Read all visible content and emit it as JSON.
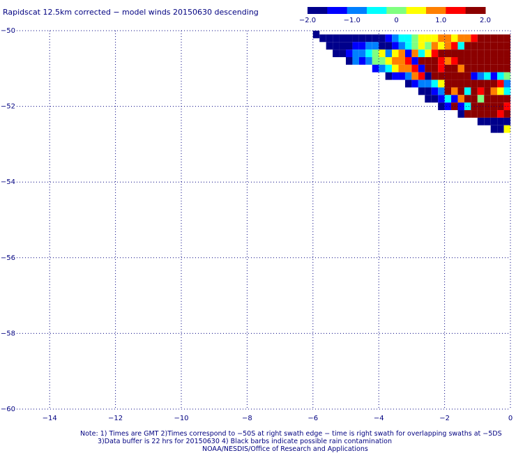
{
  "title": "Rapidscat 12.5km corrected − model winds 20150630 descending",
  "colorbar": {
    "min": -2.0,
    "max": 2.0,
    "tick_values": [
      -2.0,
      -1.0,
      0,
      1.0,
      2.0
    ],
    "tick_labels": [
      "−2.0",
      "−1.0",
      "0",
      "1.0",
      "2.0"
    ],
    "colors": [
      "#00008b",
      "#0000ff",
      "#0080ff",
      "#00ffff",
      "#80ff80",
      "#ffff00",
      "#ff8000",
      "#ff0000",
      "#8b0000"
    ]
  },
  "notes": {
    "line1": "Note: 1) Times are GMT 2)Times correspond to −50S at right swath edge − time is right swath for overlapping swaths at −5DS",
    "line2": "3)Data buffer is 22 hrs for 20150630 4) Black barbs indicate possible rain contamination",
    "line3": "NOAA/NESDIS/Office of Research and Applications"
  },
  "chart_data": {
    "type": "heatmap",
    "title": "Rapidscat 12.5km corrected − model winds 20150630 descending",
    "xlabel": "",
    "ylabel": "",
    "xlim": [
      -15,
      0
    ],
    "ylim": [
      -60,
      -50
    ],
    "x_ticks": [
      -14,
      -12,
      -10,
      -8,
      -6,
      -4,
      -2,
      0
    ],
    "x_tick_labels": [
      "−14",
      "−12",
      "−10",
      "−8",
      "−6",
      "−4",
      "−2",
      "0"
    ],
    "y_ticks": [
      -50,
      -52,
      -54,
      -56,
      -58,
      -60
    ],
    "y_tick_labels": [
      "−50",
      "−52",
      "−54",
      "−56",
      "−58",
      "−60"
    ],
    "grid": true,
    "cell_size_deg": 0.2,
    "value_range": [
      -2.0,
      2.0
    ],
    "rows": [
      {
        "lat": -50.0,
        "lon_start": -6.0,
        "values": [
          -2.0
        ]
      },
      {
        "lat": -50.1,
        "lon_start": -5.8,
        "values": [
          -2.0,
          -2.0,
          -1.6,
          -2.0,
          -1.6,
          -2.0,
          -1.6,
          -2.0,
          -1.8,
          -1.6,
          -1.2,
          -0.9,
          -0.5,
          -0.3,
          0.1,
          0.3,
          0.5,
          0.6,
          0.8,
          1.0,
          0.5,
          0.8,
          1.0,
          1.5,
          1.8,
          2.0,
          2.0,
          2.0,
          2.0,
          2.0
        ]
      },
      {
        "lat": -50.3,
        "lon_start": -5.6,
        "values": [
          -2.0,
          -1.8,
          -1.6,
          -1.8,
          -1.4,
          -1.2,
          -0.9,
          -0.7,
          -1.8,
          -1.6,
          -1.3,
          -0.9,
          -0.4,
          0.2,
          0.4,
          -0.2,
          0.7,
          0.3,
          1.0,
          1.3,
          -0.5,
          1.7,
          2.0,
          2.0,
          2.0,
          2.0,
          2.0,
          2.0
        ]
      },
      {
        "lat": -50.5,
        "lon_start": -5.4,
        "values": [
          -2.0,
          -1.7,
          -1.5,
          -1.1,
          -0.7,
          -0.4,
          -0.1,
          0.3,
          -0.8,
          0.5,
          0.8,
          -1.5,
          1.1,
          -0.3,
          0.6,
          1.4,
          2.0,
          1.6,
          2.0,
          2.0,
          2.0,
          2.0,
          2.0,
          2.0,
          2.0,
          2.0,
          2.0
        ]
      },
      {
        "lat": -50.7,
        "lon_start": -5.0,
        "values": [
          -1.6,
          -1.1,
          -1.5,
          -0.7,
          -0.2,
          0.1,
          0.4,
          0.7,
          0.9,
          1.2,
          -1.4,
          1.6,
          1.9,
          2.0,
          1.3,
          1.0,
          1.4,
          2.0,
          2.0,
          2.0,
          2.0,
          2.0,
          2.0,
          2.0,
          2.0
        ]
      },
      {
        "lat": -50.9,
        "lon_start": -4.2,
        "values": [
          -1.3,
          -0.9,
          -0.4,
          0.5,
          0.8,
          1.1,
          1.3,
          -1.4,
          1.7,
          2.0,
          1.5,
          2.0,
          2.0,
          0.8,
          2.0,
          2.0,
          2.0,
          2.0,
          2.0,
          2.0,
          2.0,
          2.0
        ]
      },
      {
        "lat": -51.1,
        "lon_start": -3.8,
        "values": [
          -1.8,
          -1.5,
          -1.2,
          -0.8,
          1.0,
          1.4,
          -1.6,
          1.8,
          2.0,
          2.0,
          2.0,
          1.6,
          2.0,
          -1.5,
          -1.0,
          -0.6,
          -1.3,
          -0.5,
          -0.2,
          -0.4,
          0.1
        ]
      },
      {
        "lat": -51.3,
        "lon_start": -3.2,
        "values": [
          -1.8,
          -1.4,
          -1.1,
          -0.7,
          -0.3,
          0.3,
          2.0,
          2.0,
          2.0,
          2.0,
          1.8,
          2.0,
          2.0,
          2.0,
          1.5,
          -0.8,
          -0.5,
          0.8,
          2.0
        ]
      },
      {
        "lat": -51.5,
        "lon_start": -2.8,
        "values": [
          -1.9,
          -1.6,
          -1.2,
          -0.8,
          2.0,
          1.0,
          2.0,
          -0.4,
          2.0,
          1.4,
          2.0,
          1.1,
          0.3,
          -0.3,
          0.7,
          1.3
        ]
      },
      {
        "lat": -51.7,
        "lon_start": -2.6,
        "values": [
          -2.0,
          -1.6,
          -1.3,
          -0.6,
          -1.4,
          0.8,
          1.8,
          2.0,
          -0.2,
          2.0,
          2.0,
          2.0,
          1.7,
          2.0,
          2.0,
          1.6
        ]
      },
      {
        "lat": -51.9,
        "lon_start": -2.2,
        "values": [
          -1.8,
          -1.5,
          2.0,
          -1.2,
          -0.5,
          2.0,
          2.0,
          2.0,
          2.0,
          2.0,
          1.5,
          2.0,
          2.0,
          1.6
        ]
      },
      {
        "lat": -52.1,
        "lon_start": -1.6,
        "values": [
          -1.9,
          2.0,
          2.0,
          2.0,
          2.0,
          1.6,
          1.3,
          2.0,
          1.8,
          2.0,
          1.5
        ]
      },
      {
        "lat": -52.3,
        "lon_start": -1.0,
        "values": [
          -2.0,
          -1.6,
          -1.8,
          -2.0,
          -1.6,
          -0.3
        ]
      },
      {
        "lat": -52.5,
        "lon_start": -0.6,
        "values": [
          -2.0,
          -1.8,
          0.4
        ]
      }
    ]
  }
}
